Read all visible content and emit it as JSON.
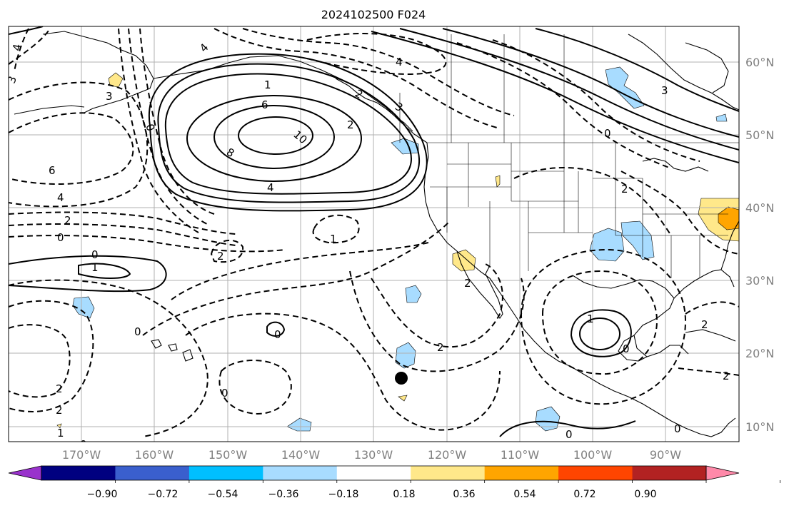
{
  "title": "2024102500 F024",
  "map": {
    "lon_range": [
      -180,
      -80
    ],
    "lat_range": [
      8,
      65
    ],
    "grid": true,
    "lon_ticks": [
      "170°W",
      "160°W",
      "150°W",
      "140°W",
      "130°W",
      "120°W",
      "110°W",
      "100°W",
      "90°W"
    ],
    "lat_ticks": [
      "60°N",
      "50°N",
      "40°N",
      "30°N",
      "20°N",
      "10°N"
    ],
    "contour_labels": [
      "4",
      "3",
      "3",
      "0",
      "4",
      "6",
      "8",
      "10",
      "4",
      "1",
      "3",
      "2",
      "2",
      "3",
      "0",
      "4",
      "6",
      "4",
      "2",
      "0",
      "0",
      "1",
      "2",
      "1",
      "2",
      "0",
      "0",
      "2",
      "2",
      "2",
      "0",
      "1",
      "0",
      "2",
      "0",
      "0",
      "2",
      "2",
      "1",
      "0"
    ],
    "colors": {
      "coast": "#000000",
      "grid": "#b0b0b0",
      "land_blue_fill": "#a8dcff",
      "yellow_fill": "#ffe88a",
      "orange_fill": "#ffa500"
    }
  },
  "colorbar": {
    "ticks": [
      "−0.90",
      "−0.72",
      "−0.54",
      "−0.36",
      "−0.18",
      "0.18",
      "0.36",
      "0.54",
      "0.72",
      "0.90"
    ],
    "colors": [
      "#9932cc",
      "#000080",
      "#3a5fcd",
      "#00bfff",
      "#a8dcff",
      "#ffffff",
      "#ffe88a",
      "#ffa500",
      "#ff4500",
      "#b22222",
      "#ff89a9"
    ],
    "extend": "both"
  }
}
